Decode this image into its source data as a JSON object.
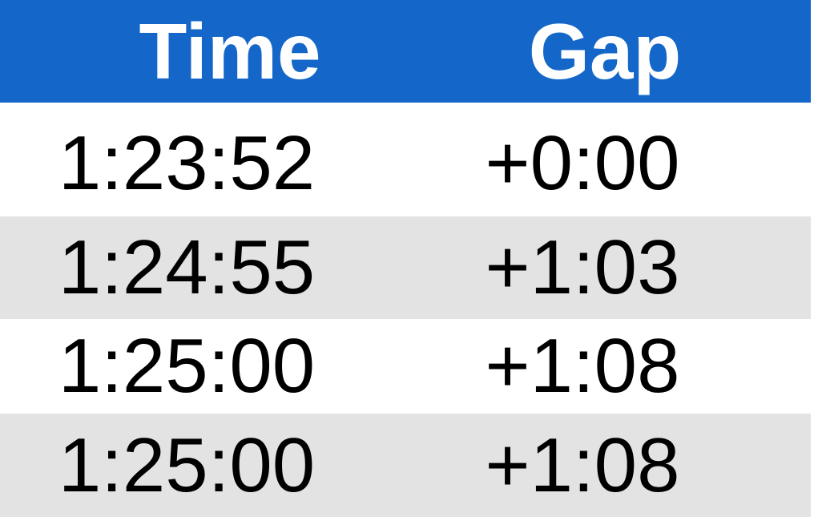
{
  "table": {
    "header": [
      "Time",
      "Gap"
    ],
    "rows": [
      [
        "1:23:52",
        "+0:00"
      ],
      [
        "1:24:55",
        "+1:03"
      ],
      [
        "1:25:00",
        "+1:08"
      ],
      [
        "1:25:00",
        "+1:08"
      ]
    ]
  }
}
